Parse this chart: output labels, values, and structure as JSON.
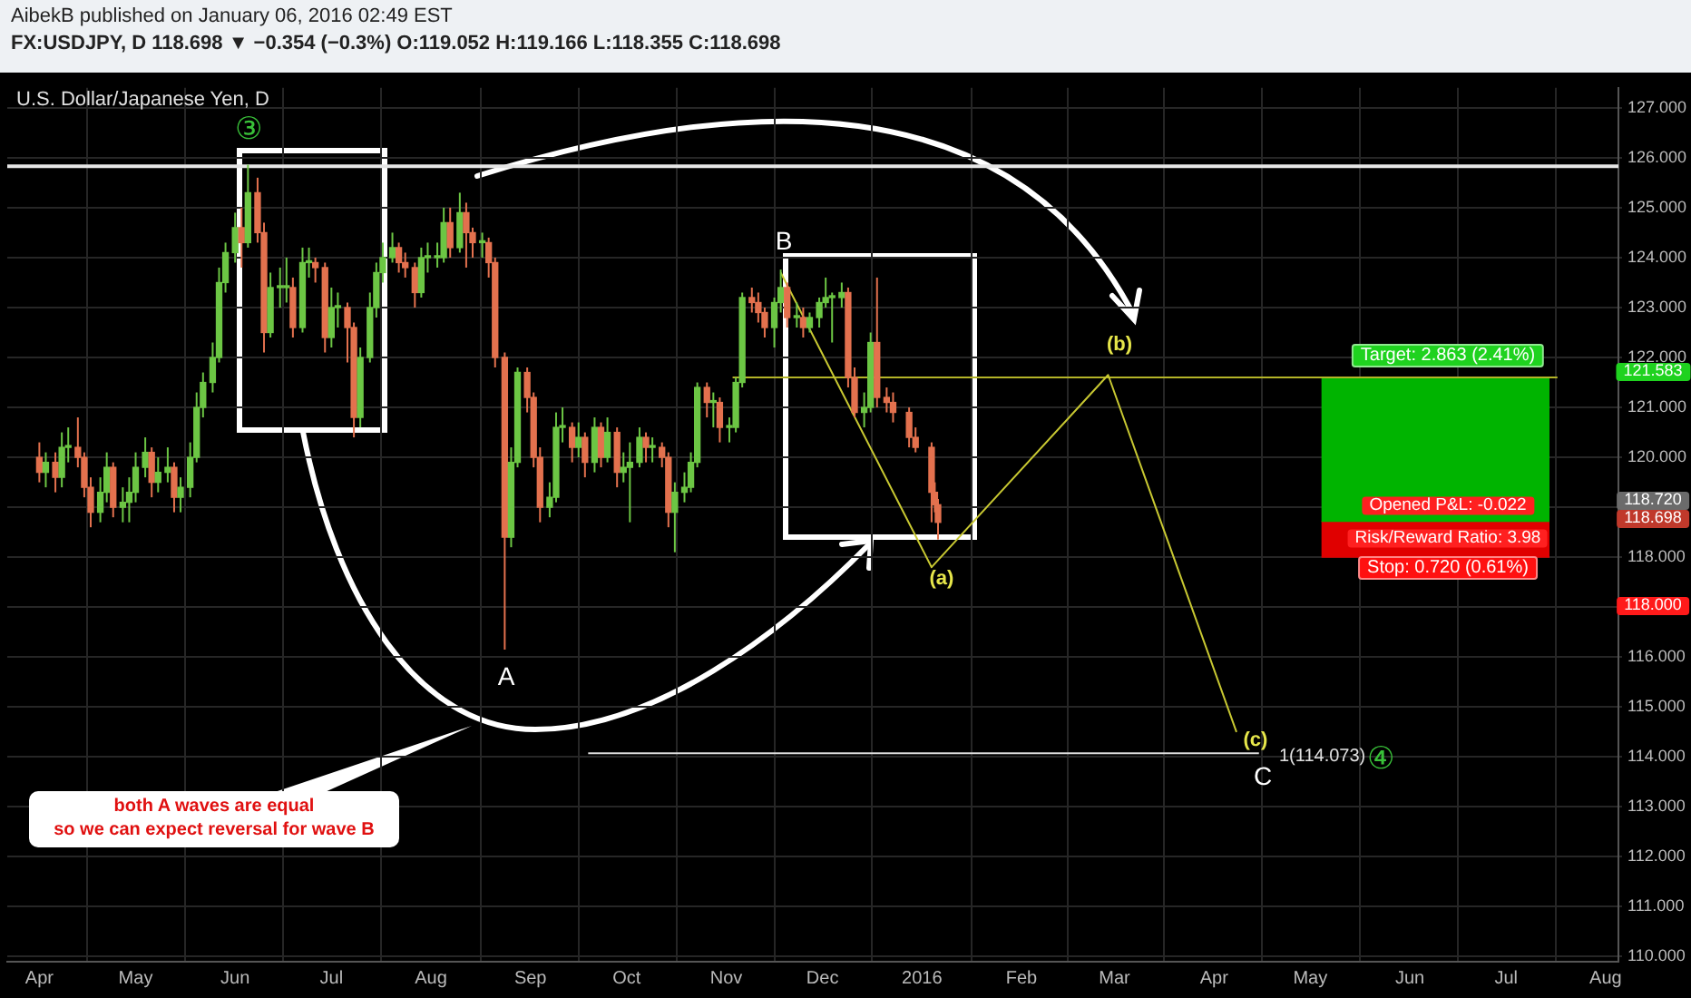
{
  "chart_data": {
    "type": "candlestick",
    "subtitle": "AibekB published on January 06, 2016 02:49 EST",
    "title": "FX:USDJPY, D 118.698 ▼ −0.354 (−0.3%) O:119.052 H:119.166 L:118.355 C:118.698",
    "x": [
      "2015-04-01",
      "2015-04-03",
      "2015-04-06",
      "2015-04-08",
      "2015-04-10",
      "2015-04-13",
      "2015-04-15",
      "2015-04-17",
      "2015-04-20",
      "2015-04-22",
      "2015-04-24",
      "2015-04-27",
      "2015-04-29",
      "2015-05-01",
      "2015-05-04",
      "2015-05-06",
      "2015-05-08",
      "2015-05-11",
      "2015-05-13",
      "2015-05-15",
      "2015-05-18",
      "2015-05-20",
      "2015-05-22",
      "2015-05-25",
      "2015-05-27",
      "2015-05-29",
      "2015-06-01",
      "2015-06-03",
      "2015-06-05",
      "2015-06-08",
      "2015-06-10",
      "2015-06-12",
      "2015-06-15",
      "2015-06-17",
      "2015-06-19",
      "2015-06-22",
      "2015-06-24",
      "2015-06-26",
      "2015-06-29",
      "2015-07-01",
      "2015-07-03",
      "2015-07-06",
      "2015-07-08",
      "2015-07-10",
      "2015-07-13",
      "2015-07-15",
      "2015-07-17",
      "2015-07-20",
      "2015-07-22",
      "2015-07-24",
      "2015-07-27",
      "2015-07-29",
      "2015-07-31",
      "2015-08-03",
      "2015-08-05",
      "2015-08-07",
      "2015-08-10",
      "2015-08-12",
      "2015-08-14",
      "2015-08-17",
      "2015-08-19",
      "2015-08-21",
      "2015-08-24",
      "2015-08-26",
      "2015-08-28",
      "2015-08-31",
      "2015-09-02",
      "2015-09-04",
      "2015-09-07",
      "2015-09-09",
      "2015-09-11",
      "2015-09-14",
      "2015-09-16",
      "2015-09-18",
      "2015-09-21",
      "2015-09-23",
      "2015-09-25",
      "2015-09-28",
      "2015-09-30",
      "2015-10-02",
      "2015-10-05",
      "2015-10-07",
      "2015-10-09",
      "2015-10-12",
      "2015-10-14",
      "2015-10-16",
      "2015-10-19",
      "2015-10-21",
      "2015-10-23",
      "2015-10-26",
      "2015-10-28",
      "2015-10-30",
      "2015-11-02",
      "2015-11-04",
      "2015-11-06",
      "2015-11-09",
      "2015-11-11",
      "2015-11-13",
      "2015-11-16",
      "2015-11-18",
      "2015-11-20",
      "2015-11-23",
      "2015-11-25",
      "2015-11-27",
      "2015-11-30",
      "2015-12-02",
      "2015-12-04",
      "2015-12-07",
      "2015-12-09",
      "2015-12-11",
      "2015-12-14",
      "2015-12-16",
      "2015-12-18",
      "2015-12-21",
      "2015-12-23",
      "2015-12-28",
      "2015-12-30",
      "2016-01-04",
      "2016-01-05",
      "2016-01-06"
    ],
    "ohlc": [
      [
        120.0,
        120.3,
        119.5,
        119.7
      ],
      [
        119.7,
        120.1,
        119.4,
        119.9
      ],
      [
        119.9,
        120.1,
        119.3,
        119.6
      ],
      [
        119.6,
        120.5,
        119.4,
        120.2
      ],
      [
        120.2,
        120.6,
        119.9,
        120.2
      ],
      [
        120.2,
        120.8,
        119.8,
        120.0
      ],
      [
        120.0,
        120.1,
        119.2,
        119.4
      ],
      [
        119.4,
        119.6,
        118.6,
        118.9
      ],
      [
        118.9,
        119.6,
        118.7,
        119.3
      ],
      [
        119.3,
        120.1,
        119.1,
        119.8
      ],
      [
        119.8,
        119.9,
        118.8,
        119.0
      ],
      [
        119.0,
        119.4,
        118.7,
        119.1
      ],
      [
        119.1,
        119.6,
        118.7,
        119.3
      ],
      [
        119.3,
        120.1,
        119.1,
        119.8
      ],
      [
        119.8,
        120.4,
        119.6,
        120.1
      ],
      [
        120.1,
        120.2,
        119.2,
        119.5
      ],
      [
        119.5,
        120.0,
        119.3,
        119.7
      ],
      [
        119.7,
        120.2,
        119.5,
        119.8
      ],
      [
        119.8,
        119.9,
        118.9,
        119.2
      ],
      [
        119.2,
        119.6,
        118.9,
        119.4
      ],
      [
        119.4,
        120.3,
        119.2,
        120.0
      ],
      [
        120.0,
        121.3,
        119.9,
        121.0
      ],
      [
        121.0,
        121.7,
        120.8,
        121.5
      ],
      [
        121.5,
        122.3,
        121.3,
        122.0
      ],
      [
        122.0,
        123.8,
        121.9,
        123.5
      ],
      [
        123.5,
        124.3,
        123.3,
        124.1
      ],
      [
        124.1,
        124.9,
        123.9,
        124.6
      ],
      [
        124.6,
        125.0,
        123.8,
        124.3
      ],
      [
        124.3,
        125.86,
        124.2,
        125.3
      ],
      [
        125.3,
        125.6,
        124.3,
        124.5
      ],
      [
        124.5,
        124.7,
        122.1,
        122.5
      ],
      [
        122.5,
        123.7,
        122.4,
        123.4
      ],
      [
        123.4,
        123.8,
        123.0,
        123.4
      ],
      [
        123.4,
        124.0,
        123.1,
        123.4
      ],
      [
        123.4,
        123.6,
        122.4,
        122.6
      ],
      [
        122.6,
        124.2,
        122.5,
        123.9
      ],
      [
        123.9,
        124.2,
        123.6,
        123.9
      ],
      [
        123.9,
        124.0,
        123.5,
        123.8
      ],
      [
        123.8,
        123.9,
        122.1,
        122.4
      ],
      [
        122.4,
        123.4,
        122.2,
        123.0
      ],
      [
        123.0,
        123.3,
        122.6,
        123.0
      ],
      [
        123.0,
        123.1,
        121.9,
        122.6
      ],
      [
        122.6,
        122.7,
        120.4,
        120.8
      ],
      [
        120.8,
        122.2,
        120.6,
        122.0
      ],
      [
        122.0,
        123.3,
        121.9,
        123.0
      ],
      [
        123.0,
        123.9,
        122.8,
        123.7
      ],
      [
        123.7,
        124.3,
        123.5,
        124.0
      ],
      [
        124.0,
        124.5,
        123.9,
        124.2
      ],
      [
        124.2,
        124.3,
        123.7,
        123.9
      ],
      [
        123.9,
        124.1,
        123.6,
        123.8
      ],
      [
        123.8,
        123.9,
        123.0,
        123.3
      ],
      [
        123.3,
        124.2,
        123.2,
        124.0
      ],
      [
        124.0,
        124.3,
        123.7,
        124.0
      ],
      [
        124.0,
        124.3,
        123.8,
        124.0
      ],
      [
        124.0,
        125.0,
        123.9,
        124.7
      ],
      [
        124.7,
        125.0,
        124.0,
        124.2
      ],
      [
        124.2,
        125.3,
        124.1,
        124.9
      ],
      [
        124.9,
        125.1,
        123.8,
        124.5
      ],
      [
        124.5,
        124.6,
        124.0,
        124.3
      ],
      [
        124.3,
        124.5,
        124.0,
        124.3
      ],
      [
        124.3,
        124.4,
        123.6,
        123.9
      ],
      [
        123.9,
        124.0,
        121.8,
        122.0
      ],
      [
        122.0,
        122.1,
        116.15,
        118.4
      ],
      [
        118.4,
        120.2,
        118.2,
        119.9
      ],
      [
        119.9,
        121.8,
        119.8,
        121.7
      ],
      [
        121.7,
        121.8,
        120.9,
        121.2
      ],
      [
        121.2,
        121.3,
        119.8,
        120.0
      ],
      [
        120.0,
        120.2,
        118.7,
        119.0
      ],
      [
        119.0,
        119.5,
        118.8,
        119.2
      ],
      [
        119.2,
        120.9,
        119.1,
        120.6
      ],
      [
        120.6,
        121.0,
        120.3,
        120.6
      ],
      [
        120.6,
        120.7,
        119.9,
        120.2
      ],
      [
        120.2,
        120.7,
        120.0,
        120.4
      ],
      [
        120.4,
        120.5,
        119.6,
        119.9
      ],
      [
        119.9,
        120.8,
        119.7,
        120.6
      ],
      [
        120.6,
        120.7,
        119.8,
        120.0
      ],
      [
        120.0,
        120.8,
        119.9,
        120.5
      ],
      [
        120.5,
        120.6,
        119.4,
        119.7
      ],
      [
        119.7,
        120.1,
        119.5,
        119.8
      ],
      [
        119.8,
        120.3,
        118.7,
        119.9
      ],
      [
        119.9,
        120.6,
        119.8,
        120.4
      ],
      [
        120.4,
        120.5,
        119.9,
        120.2
      ],
      [
        120.2,
        120.4,
        119.9,
        120.2
      ],
      [
        120.2,
        120.3,
        119.8,
        120.0
      ],
      [
        120.0,
        120.1,
        118.6,
        118.9
      ],
      [
        118.9,
        119.5,
        118.1,
        119.3
      ],
      [
        119.3,
        119.7,
        119.1,
        119.4
      ],
      [
        119.4,
        120.1,
        119.3,
        119.9
      ],
      [
        119.9,
        121.5,
        119.8,
        121.4
      ],
      [
        121.4,
        121.5,
        120.8,
        121.1
      ],
      [
        121.1,
        121.3,
        120.6,
        121.1
      ],
      [
        121.1,
        121.2,
        120.3,
        120.6
      ],
      [
        120.6,
        120.8,
        120.3,
        120.6
      ],
      [
        120.6,
        121.6,
        120.5,
        121.5
      ],
      [
        121.5,
        123.3,
        121.4,
        123.2
      ],
      [
        123.2,
        123.4,
        122.9,
        123.1
      ],
      [
        123.1,
        123.3,
        122.7,
        122.9
      ],
      [
        122.9,
        123.0,
        122.4,
        122.6
      ],
      [
        122.6,
        123.2,
        122.2,
        123.1
      ],
      [
        123.1,
        123.76,
        122.9,
        123.4
      ],
      [
        123.4,
        123.5,
        122.6,
        122.8
      ],
      [
        122.8,
        123.1,
        122.6,
        122.8
      ],
      [
        122.8,
        123.0,
        122.4,
        122.6
      ],
      [
        122.6,
        122.9,
        122.5,
        122.8
      ],
      [
        122.8,
        123.2,
        122.6,
        123.1
      ],
      [
        123.1,
        123.6,
        123.0,
        123.2
      ],
      [
        123.2,
        123.3,
        122.3,
        123.2
      ],
      [
        123.2,
        123.5,
        123.0,
        123.3
      ],
      [
        123.3,
        123.4,
        121.4,
        121.6
      ],
      [
        121.6,
        121.8,
        120.8,
        120.9
      ],
      [
        120.9,
        121.3,
        120.6,
        121.0
      ],
      [
        121.0,
        122.5,
        120.9,
        122.3
      ],
      [
        122.3,
        123.6,
        121.0,
        121.2
      ],
      [
        121.2,
        121.4,
        120.9,
        121.1
      ],
      [
        121.1,
        121.3,
        120.7,
        120.9
      ],
      [
        120.9,
        121.0,
        120.2,
        120.4
      ],
      [
        120.4,
        120.6,
        120.1,
        120.2
      ],
      [
        120.2,
        120.3,
        118.7,
        119.3
      ],
      [
        119.3,
        119.5,
        118.9,
        119.052
      ],
      [
        119.052,
        119.166,
        118.355,
        118.698
      ]
    ],
    "series": [
      {
        "type": "line",
        "color": "#c8c832",
        "x": [
          "2015-11-18",
          "2016-01-04",
          "2016-02-28",
          "2016-04-08"
        ],
        "values": [
          123.7,
          117.8,
          121.65,
          114.5
        ]
      },
      {
        "type": "line",
        "color": "#b4b428",
        "x": [
          "2015-11-03",
          "2016-07-17"
        ],
        "values": [
          121.6,
          121.6
        ]
      },
      {
        "type": "line",
        "color": "#dddddd",
        "x": [
          "2015-09-19",
          "2016-04-15"
        ],
        "values": [
          114.073,
          114.073
        ]
      },
      {
        "type": "bar",
        "color": "#00b400",
        "x": [
          "2016-06-09"
        ],
        "base": [
          118.72
        ],
        "values": [
          2.863
        ]
      },
      {
        "type": "bar",
        "color": "#e00000",
        "x": [
          "2016-06-09"
        ],
        "base": [
          118.0
        ],
        "values": [
          0.72
        ]
      }
    ],
    "ref_lines": [
      {
        "axis": "y",
        "value": 125.83,
        "color": "#e6e6e6"
      }
    ],
    "annotations": [
      "U.S. Dollar/Japanese Yen, D",
      "both A waves are equal\nso we can expect reversal for wave B",
      "③",
      "A",
      "B",
      "(a)",
      "(b)",
      "(c)",
      "C",
      "④",
      "1(114.073)",
      "Target: 2.863 (2.41%)",
      "Opened P&L: -0.022",
      "Risk/Reward Ratio: 3.98",
      "Stop: 0.720 (0.61%)",
      "121.583",
      "118.720",
      "118.698",
      "118.000"
    ],
    "xlim": [
      "2015-03-22",
      "2016-08-05"
    ],
    "xticks": [
      {
        "value": "2015-04",
        "label": "Apr"
      },
      {
        "value": "2015-05",
        "label": "May"
      },
      {
        "value": "2015-06",
        "label": "Jun"
      },
      {
        "value": "2015-07",
        "label": "Jul"
      },
      {
        "value": "2015-08",
        "label": "Aug"
      },
      {
        "value": "2015-09",
        "label": "Sep"
      },
      {
        "value": "2015-10",
        "label": "Oct"
      },
      {
        "value": "2015-11",
        "label": "Nov"
      },
      {
        "value": "2015-12",
        "label": "Dec"
      },
      {
        "value": "2016-01",
        "label": "2016"
      },
      {
        "value": "2016-02",
        "label": "Feb"
      },
      {
        "value": "2016-03",
        "label": "Mar"
      },
      {
        "value": "2016-04",
        "label": "Apr"
      },
      {
        "value": "2016-05",
        "label": "May"
      },
      {
        "value": "2016-06",
        "label": "Jun"
      },
      {
        "value": "2016-07",
        "label": "Jul"
      },
      {
        "value": "2016-08",
        "label": "Aug"
      }
    ],
    "ylim": [
      109.9,
      127.4
    ],
    "yticks": [
      {
        "value": 110,
        "label": "110.000"
      },
      {
        "value": 111,
        "label": "111.000"
      },
      {
        "value": 112,
        "label": "112.000"
      },
      {
        "value": 113,
        "label": "113.000"
      },
      {
        "value": 114,
        "label": "114.000"
      },
      {
        "value": 115,
        "label": "115.000"
      },
      {
        "value": 116,
        "label": "116.000"
      },
      {
        "value": 117,
        "label": null
      },
      {
        "value": 118,
        "label": "118.000"
      },
      {
        "value": 119,
        "label": null
      },
      {
        "value": 120,
        "label": "120.000"
      },
      {
        "value": 121,
        "label": "121.000"
      },
      {
        "value": 122,
        "label": "122.000"
      },
      {
        "value": 123,
        "label": "123.000"
      },
      {
        "value": 124,
        "label": "124.000"
      },
      {
        "value": 125,
        "label": "125.000"
      },
      {
        "value": 126,
        "label": "126.000"
      },
      {
        "value": 127,
        "label": "127.000"
      }
    ],
    "grid": true,
    "legend": false
  }
}
